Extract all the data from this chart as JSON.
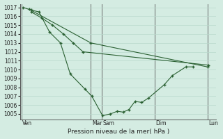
{
  "background_color": "#d4ece2",
  "grid_color": "#b8d8cc",
  "line_color": "#2a6032",
  "xlabel": "Pression niveau de la mer( hPa )",
  "ylim": [
    1004.4,
    1017.4
  ],
  "yticks": [
    1005,
    1006,
    1007,
    1008,
    1009,
    1010,
    1011,
    1012,
    1013,
    1014,
    1015,
    1016,
    1017
  ],
  "xlim": [
    0,
    10.0
  ],
  "day_lines_x": [
    0.05,
    3.6,
    4.15,
    6.85,
    9.55
  ],
  "day_labels": [
    "Ven",
    "Mar",
    "Sam",
    "Dim",
    "Lun"
  ],
  "series1_x": [
    0.15,
    0.55,
    0.95,
    1.5,
    2.05,
    2.55,
    3.3,
    3.65,
    4.2,
    4.6,
    4.95,
    5.25,
    5.55,
    5.85,
    6.2,
    6.55,
    7.35,
    7.75,
    8.45,
    8.8
  ],
  "series1_y": [
    1017.0,
    1016.7,
    1016.5,
    1014.2,
    1013.0,
    1009.5,
    1007.8,
    1007.0,
    1004.8,
    1005.0,
    1005.3,
    1005.2,
    1005.5,
    1006.4,
    1006.3,
    1006.8,
    1008.3,
    1009.3,
    1010.3,
    1010.3
  ],
  "series2_x": [
    0.45,
    3.6,
    9.55
  ],
  "series2_y": [
    1016.8,
    1013.0,
    1010.3
  ],
  "series3_x": [
    0.55,
    1.1,
    1.65,
    2.2,
    2.7,
    3.2,
    9.6
  ],
  "series3_y": [
    1016.5,
    1015.8,
    1015.0,
    1014.0,
    1013.0,
    1012.0,
    1010.5
  ]
}
